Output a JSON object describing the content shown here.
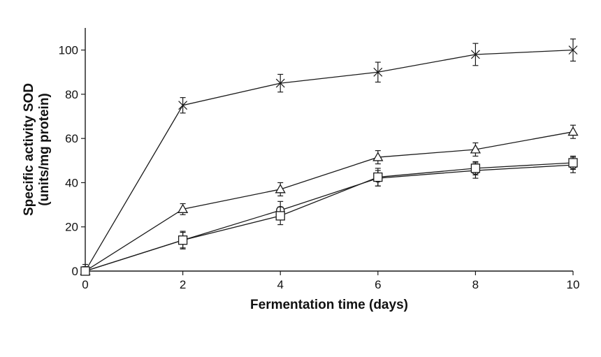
{
  "chart_data": {
    "type": "line",
    "title": "",
    "xlabel": "Fermentation time (days)",
    "ylabel_line1": "Specific activity SOD",
    "ylabel_line2": "(units/mg protein)",
    "xlim": [
      0,
      10
    ],
    "ylim": [
      0,
      110
    ],
    "x_ticks": [
      "0",
      "2",
      "4",
      "6",
      "8",
      "10"
    ],
    "y_ticks": [
      "0",
      "20",
      "40",
      "60",
      "80",
      "100"
    ],
    "grid": false,
    "x": [
      0,
      2,
      4,
      6,
      8,
      10
    ],
    "series": [
      {
        "name": "cross",
        "marker": "x",
        "values": [
          0,
          75,
          85,
          90,
          98,
          100
        ],
        "errors": [
          3,
          3.5,
          4,
          4.5,
          5,
          5
        ]
      },
      {
        "name": "triangle",
        "marker": "triangle",
        "values": [
          0,
          28,
          37,
          51.5,
          55,
          63
        ],
        "errors": [
          2,
          2.5,
          3,
          3,
          3,
          3
        ]
      },
      {
        "name": "circle",
        "marker": "circle",
        "values": [
          0,
          14,
          27.5,
          42,
          45.5,
          48
        ],
        "errors": [
          2,
          3.5,
          4,
          3.5,
          3.5,
          3.5
        ]
      },
      {
        "name": "square",
        "marker": "square",
        "values": [
          0,
          14,
          25,
          42.5,
          46.5,
          49
        ],
        "errors": [
          2,
          4,
          4,
          4,
          3,
          3
        ]
      }
    ]
  }
}
